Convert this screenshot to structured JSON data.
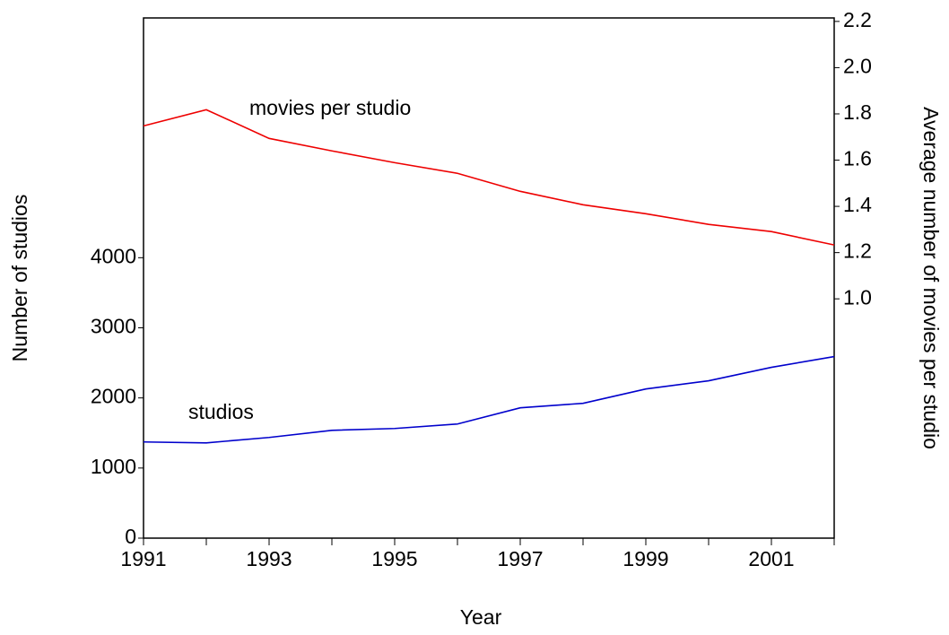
{
  "chart_data": {
    "type": "line",
    "x_label": "Year",
    "y_label": "Number of studios",
    "y2_label": "Average number of movies per studio",
    "x": [
      1991,
      1992,
      1993,
      1994,
      1995,
      1996,
      1997,
      1998,
      1999,
      2000,
      2001,
      2002
    ],
    "xlim": [
      1991,
      2002
    ],
    "xticks": [
      1991,
      1993,
      1995,
      1997,
      1999,
      2001
    ],
    "xminorticks": [
      1992,
      1994,
      1996,
      1998,
      2000,
      2002
    ],
    "ylim": [
      0,
      7420
    ],
    "yticks": [
      0,
      1000,
      2000,
      3000,
      4000
    ],
    "y2lim": [
      -0.035,
      2.215
    ],
    "y2ticks": [
      {
        "value": 1.0,
        "label": "1.0"
      },
      1.2,
      1.4,
      1.6,
      1.8,
      {
        "value": 2.0,
        "label": "2.0"
      },
      2.2
    ],
    "grid": false,
    "series": [
      {
        "name": "studios",
        "color": "#0000cc",
        "axis": "y",
        "values": [
          1372,
          1359,
          1436,
          1538,
          1564,
          1628,
          1859,
          1923,
          2128,
          2244,
          2436,
          2590
        ]
      },
      {
        "name": "movies per studio",
        "color": "#ee0000",
        "axis": "y2",
        "values": [
          1.748,
          1.818,
          1.694,
          1.64,
          1.589,
          1.543,
          1.465,
          1.407,
          1.368,
          1.322,
          1.291,
          1.233
        ]
      }
    ]
  }
}
